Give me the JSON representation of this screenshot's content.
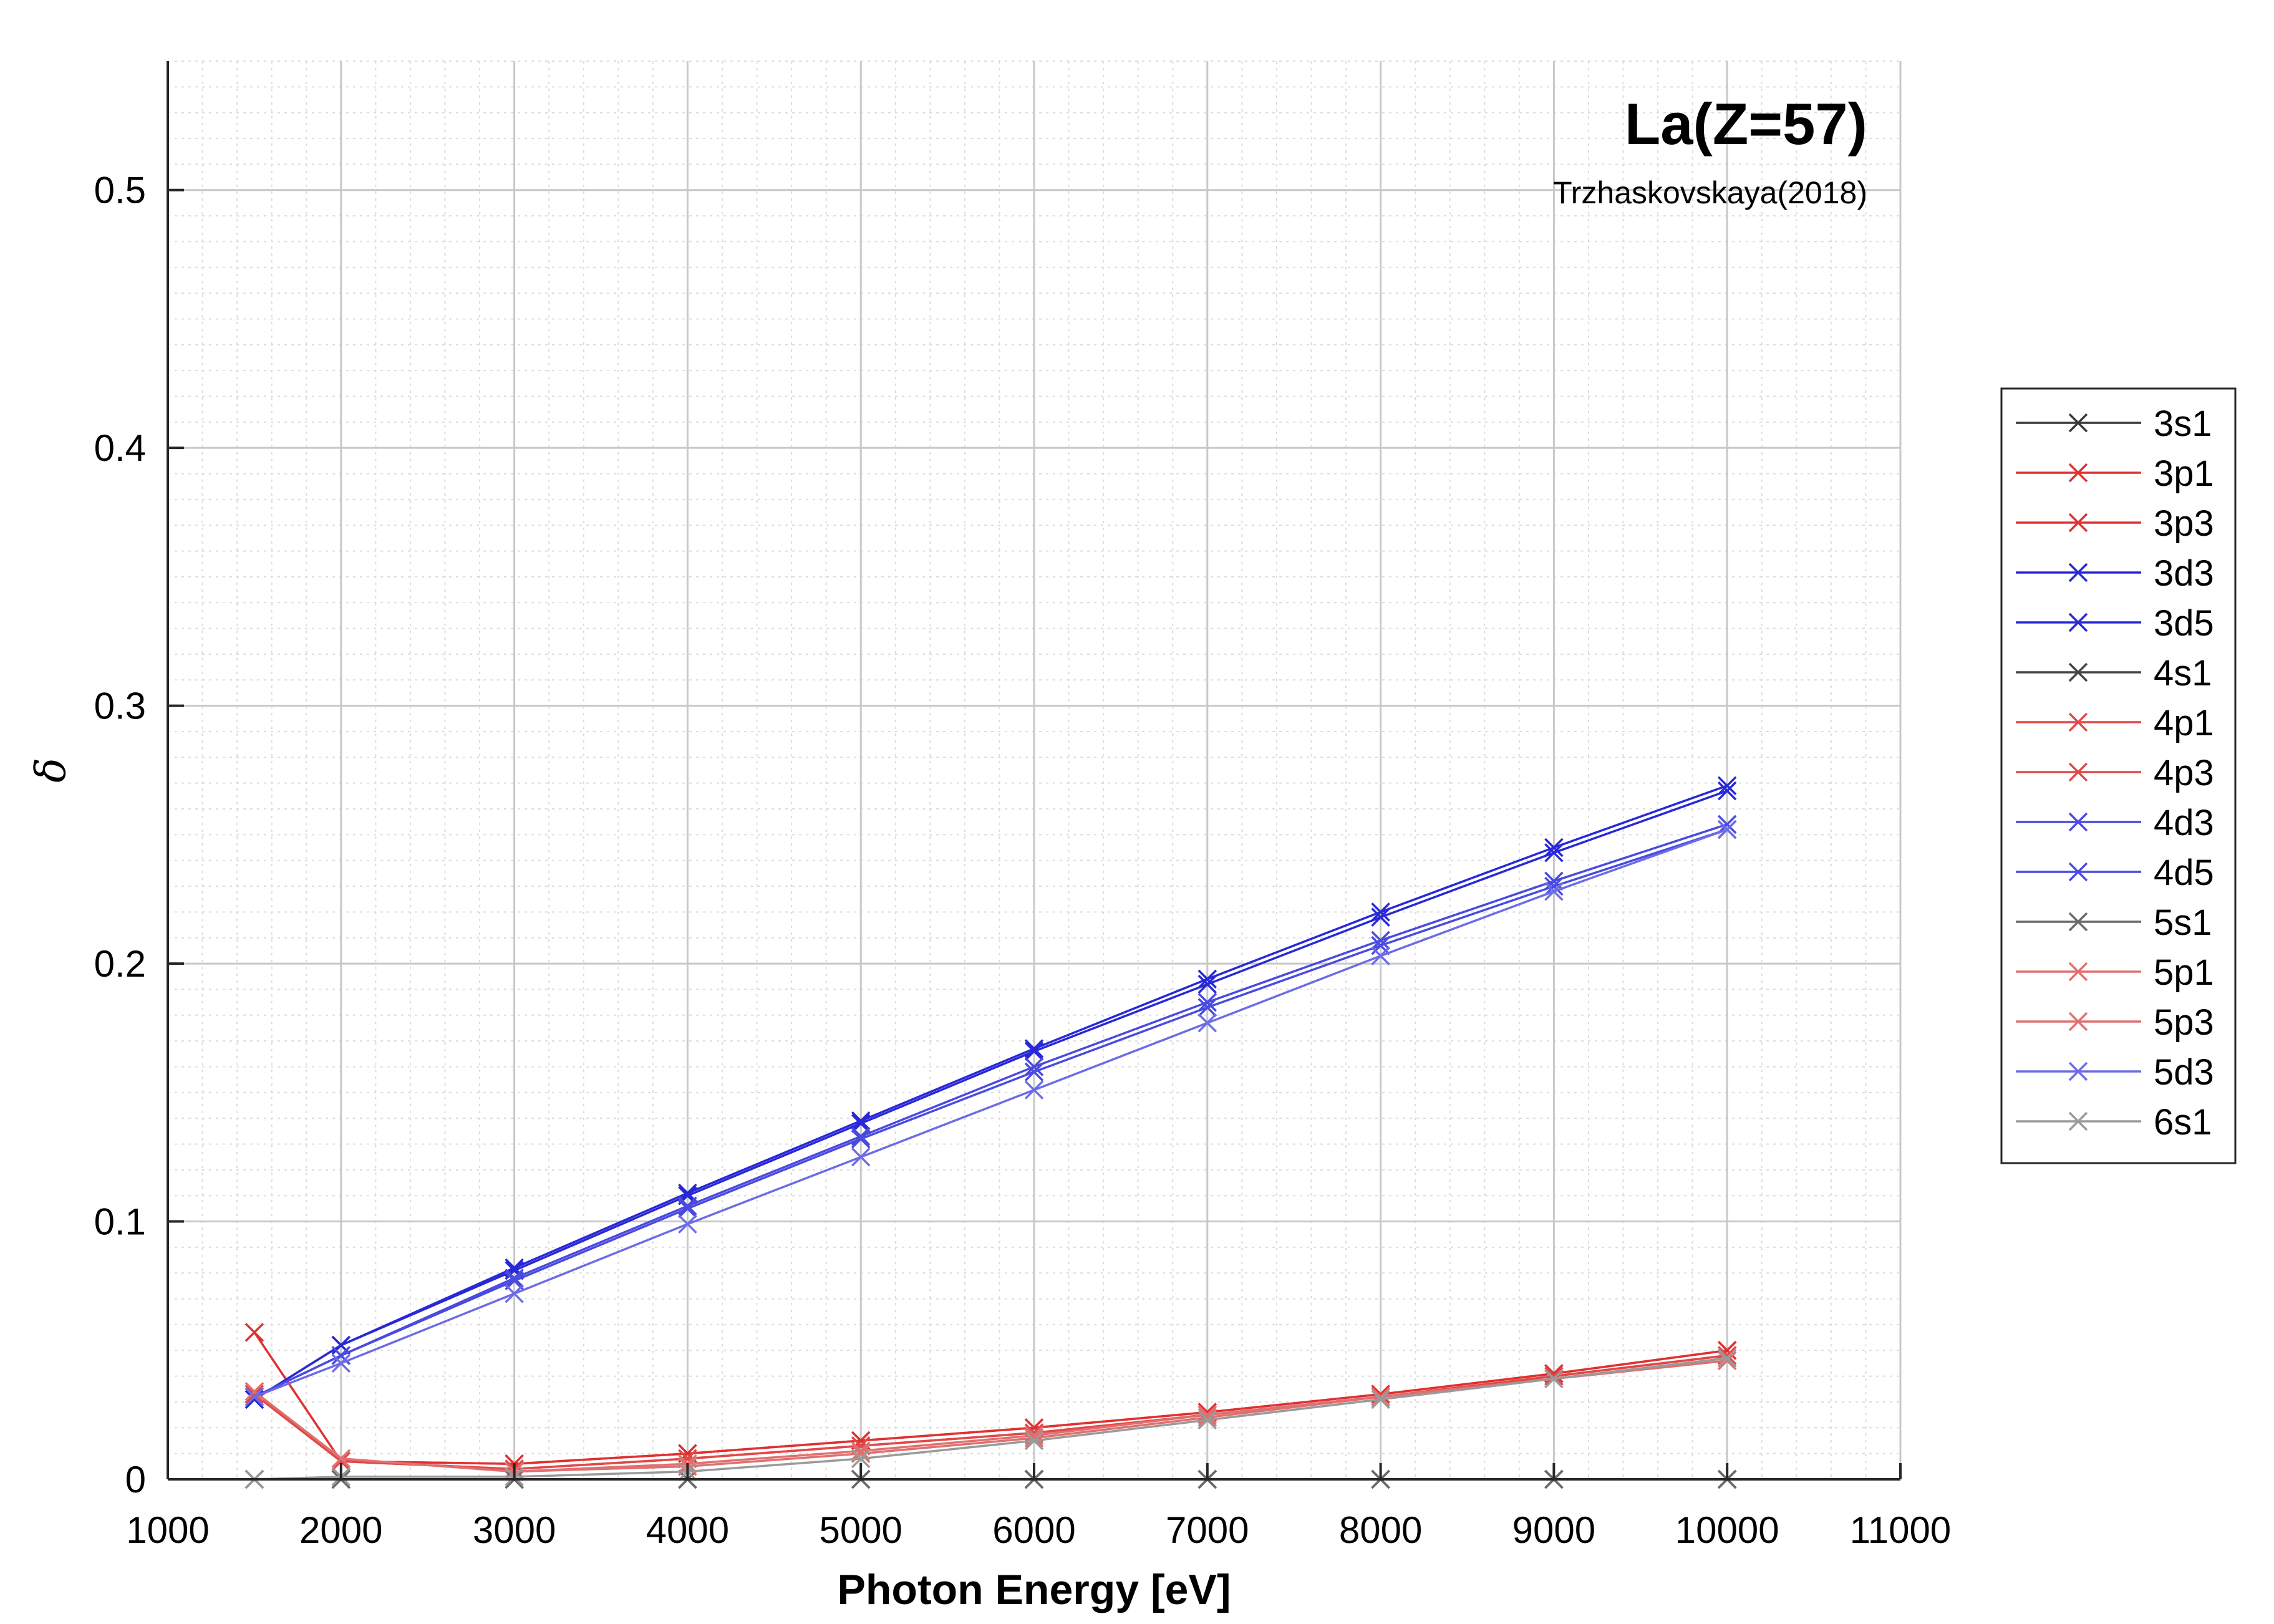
{
  "chart_data": {
    "type": "line",
    "title": "La(Z=57)",
    "subtitle": "Trzhaskovskaya(2018)",
    "xlabel": "Photon Energy [eV]",
    "ylabel": "δ",
    "xlim": [
      1000,
      11000
    ],
    "ylim": [
      0,
      0.55
    ],
    "xticks": [
      1000,
      2000,
      3000,
      4000,
      5000,
      6000,
      7000,
      8000,
      9000,
      10000,
      11000
    ],
    "xtick_labels": [
      "1000",
      "2000",
      "3000",
      "4000",
      "5000",
      "6000",
      "7000",
      "8000",
      "9000",
      "10000",
      "11000"
    ],
    "yticks": [
      0,
      0.1,
      0.2,
      0.3,
      0.4,
      0.5
    ],
    "ytick_labels": [
      "0",
      "0.1",
      "0.2",
      "0.3",
      "0.4",
      "0.5"
    ],
    "grid": true,
    "minor_grid": true,
    "legend_position": "outside-right",
    "marker": "x",
    "x": [
      1500,
      2000,
      3000,
      4000,
      5000,
      6000,
      7000,
      8000,
      9000,
      10000
    ],
    "series": [
      {
        "name": "3s1",
        "color": "#3a3a3a",
        "values": [
          0.0,
          0.0,
          0.0,
          0.0,
          0.0,
          0.0,
          0.0,
          0.0,
          0.0,
          0.0
        ]
      },
      {
        "name": "3p1",
        "color": "#e03030",
        "values": [
          0.057,
          0.007,
          0.006,
          0.01,
          0.015,
          0.02,
          0.026,
          0.033,
          0.041,
          0.05
        ]
      },
      {
        "name": "3p3",
        "color": "#e03030",
        "values": [
          0.034,
          0.007,
          0.006,
          0.01,
          0.015,
          0.02,
          0.026,
          0.033,
          0.041,
          0.05
        ]
      },
      {
        "name": "3d3",
        "color": "#2828d8",
        "values": [
          0.031,
          0.052,
          0.082,
          0.111,
          0.139,
          0.167,
          0.194,
          0.22,
          0.245,
          0.269
        ]
      },
      {
        "name": "3d5",
        "color": "#2828d8",
        "values": [
          0.031,
          0.052,
          0.081,
          0.11,
          0.138,
          0.166,
          0.192,
          0.218,
          0.243,
          0.267
        ]
      },
      {
        "name": "4s1",
        "color": "#444444",
        "values": [
          0.0,
          0.0,
          0.0,
          0.0,
          0.0,
          0.0,
          0.0,
          0.0,
          0.0,
          0.0
        ]
      },
      {
        "name": "4p1",
        "color": "#e24848",
        "values": [
          0.033,
          0.007,
          0.004,
          0.008,
          0.013,
          0.018,
          0.025,
          0.032,
          0.04,
          0.048
        ]
      },
      {
        "name": "4p3",
        "color": "#e24848",
        "values": [
          0.033,
          0.007,
          0.004,
          0.008,
          0.013,
          0.018,
          0.025,
          0.032,
          0.04,
          0.048
        ]
      },
      {
        "name": "4d3",
        "color": "#4a4ae0",
        "values": [
          0.032,
          0.048,
          0.078,
          0.106,
          0.133,
          0.16,
          0.185,
          0.209,
          0.232,
          0.254
        ]
      },
      {
        "name": "4d5",
        "color": "#4a4ae0",
        "values": [
          0.032,
          0.048,
          0.077,
          0.105,
          0.132,
          0.158,
          0.183,
          0.207,
          0.23,
          0.252
        ]
      },
      {
        "name": "5s1",
        "color": "#6a6a6a",
        "values": [
          0.0,
          0.0,
          0.0,
          0.0,
          0.0,
          0.0,
          0.0,
          0.0,
          0.0,
          0.0
        ]
      },
      {
        "name": "5p1",
        "color": "#e07070",
        "values": [
          0.034,
          0.008,
          0.003,
          0.006,
          0.011,
          0.017,
          0.025,
          0.032,
          0.039,
          0.047
        ]
      },
      {
        "name": "5p3",
        "color": "#e07070",
        "values": [
          0.034,
          0.008,
          0.003,
          0.005,
          0.01,
          0.016,
          0.024,
          0.032,
          0.039,
          0.046
        ]
      },
      {
        "name": "5d3",
        "color": "#6c6ce6",
        "values": [
          0.032,
          0.045,
          0.072,
          0.099,
          0.125,
          0.151,
          0.177,
          0.203,
          0.228,
          0.252
        ]
      },
      {
        "name": "6s1",
        "color": "#9a9a9a",
        "values": [
          0.0,
          0.001,
          0.001,
          0.003,
          0.008,
          0.015,
          0.023,
          0.031,
          0.039,
          0.047
        ]
      }
    ]
  }
}
